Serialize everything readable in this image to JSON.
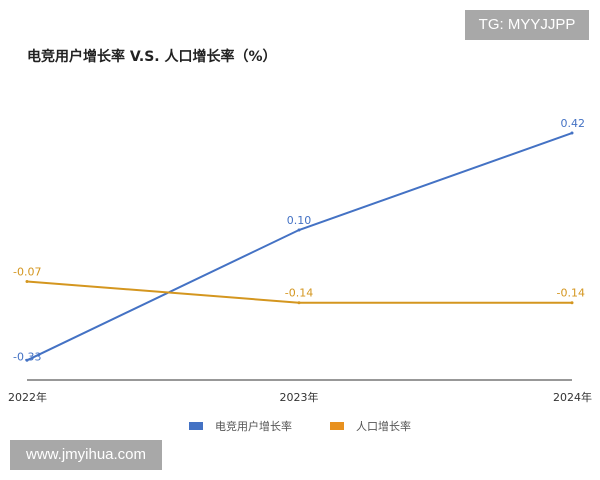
{
  "watermarks": {
    "top": "TG: MYYJJPP",
    "bottom": "www.jmyihua.com"
  },
  "chart_data": {
    "type": "line",
    "title": "电竞用户增长率 V.S. 人口增长率（%）",
    "categories": [
      "2022年",
      "2023年",
      "2024年"
    ],
    "series": [
      {
        "name": "电竞用户增长率",
        "values": [
          -0.33,
          0.1,
          0.42
        ],
        "color": "#4472c4",
        "labels": [
          "-0.33",
          "0.10",
          "0.42"
        ]
      },
      {
        "name": "人口增长率",
        "values": [
          -0.07,
          -0.14,
          -0.14
        ],
        "color": "#d4961f",
        "labels": [
          "-0.07",
          "-0.14",
          "-0.14"
        ]
      }
    ],
    "grid": false,
    "legend": "bottom"
  }
}
